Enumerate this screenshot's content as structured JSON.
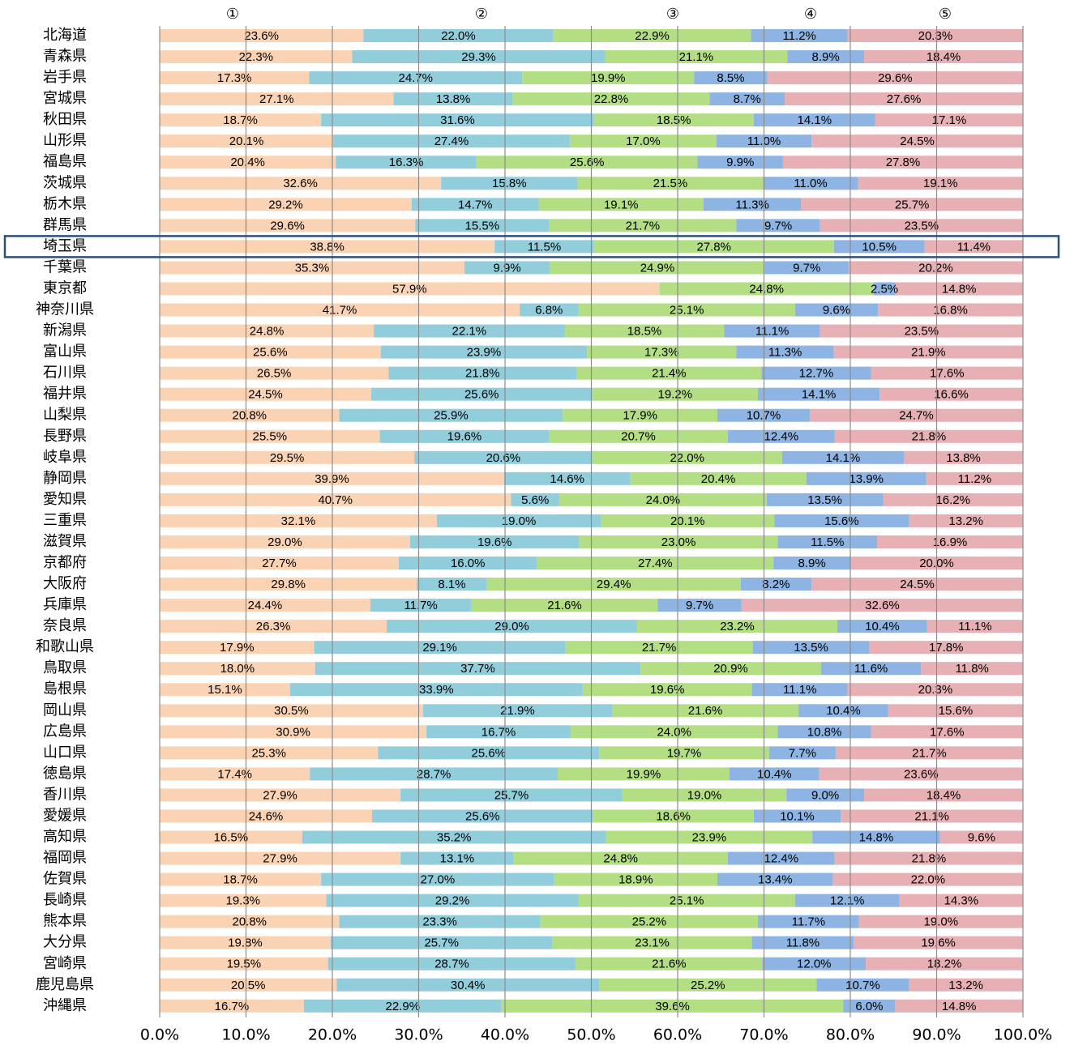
{
  "chart_data": {
    "type": "stacked_barh",
    "categories": [
      "北海道",
      "青森県",
      "岩手県",
      "宮城県",
      "秋田県",
      "山形県",
      "福島県",
      "茨城県",
      "栃木県",
      "群馬県",
      "埼玉県",
      "千葉県",
      "東京都",
      "神奈川県",
      "新潟県",
      "富山県",
      "石川県",
      "福井県",
      "山梨県",
      "長野県",
      "岐阜県",
      "静岡県",
      "愛知県",
      "三重県",
      "滋賀県",
      "京都府",
      "大阪府",
      "兵庫県",
      "奈良県",
      "和歌山県",
      "鳥取県",
      "島根県",
      "岡山県",
      "広島県",
      "山口県",
      "徳島県",
      "香川県",
      "愛媛県",
      "高知県",
      "福岡県",
      "佐賀県",
      "長崎県",
      "熊本県",
      "大分県",
      "宮崎県",
      "鹿児島県",
      "沖縄県"
    ],
    "series": [
      {
        "name": "①",
        "color": "#fad3b4",
        "values": [
          23.6,
          22.3,
          17.3,
          27.1,
          18.7,
          20.1,
          20.4,
          32.6,
          29.2,
          29.6,
          38.8,
          35.3,
          57.9,
          41.7,
          24.8,
          25.6,
          26.5,
          24.5,
          20.8,
          25.5,
          29.5,
          39.9,
          40.7,
          32.1,
          29.0,
          27.7,
          29.8,
          24.4,
          26.3,
          17.9,
          18.0,
          15.1,
          30.5,
          30.9,
          25.3,
          17.4,
          27.9,
          24.6,
          16.5,
          27.9,
          18.7,
          19.3,
          20.8,
          19.8,
          19.5,
          20.5,
          16.7
        ],
        "value_labels": [
          "23.6%",
          "22.3%",
          "17.3%",
          "27.1%",
          "18.7%",
          "20.1%",
          "20.4%",
          "32.6%",
          "29.2%",
          "29.6%",
          "38.8%",
          "35.3%",
          "57.9%",
          "41.7%",
          "24.8%",
          "25.6%",
          "26.5%",
          "24.5%",
          "20.8%",
          "25.5%",
          "29.5%",
          "39.9%",
          "40.7%",
          "32.1%",
          "29.0%",
          "27.7%",
          "29.8%",
          "24.4%",
          "26.3%",
          "17.9%",
          "18.0%",
          "15.1%",
          "30.5%",
          "30.9%",
          "25.3%",
          "17.4%",
          "27.9%",
          "24.6%",
          "16.5%",
          "27.9%",
          "18.7%",
          "19.3%",
          "20.8%",
          "19.8%",
          "19.5%",
          "20.5%",
          "16.7%"
        ]
      },
      {
        "name": "②",
        "color": "#92cddc",
        "values": [
          22.0,
          29.3,
          24.7,
          13.8,
          31.6,
          27.4,
          16.3,
          15.8,
          14.7,
          15.5,
          11.5,
          9.9,
          null,
          6.8,
          22.1,
          23.9,
          21.8,
          25.6,
          25.9,
          19.6,
          20.6,
          14.6,
          5.6,
          19.0,
          19.6,
          16.0,
          8.1,
          11.7,
          29.0,
          29.1,
          37.7,
          33.9,
          21.9,
          16.7,
          25.6,
          28.7,
          25.7,
          25.6,
          35.2,
          13.1,
          27.0,
          29.2,
          23.3,
          25.7,
          28.7,
          30.4,
          22.9
        ],
        "value_labels": [
          "22.0%",
          "29.3%",
          "24.7%",
          "13.8%",
          "31.6%",
          "27.4%",
          "16.3%",
          "15.8%",
          "14.7%",
          "15.5%",
          "11.5%",
          "9.9%",
          null,
          "6.8%",
          "22.1%",
          "23.9%",
          "21.8%",
          "25.6%",
          "25.9%",
          "19.6%",
          "20.6%",
          "14.6%",
          "5.6%",
          "19.0%",
          "19.6%",
          "16.0%",
          "8.1%",
          "11.7%",
          "29.0%",
          "29.1%",
          "37.7%",
          "33.9%",
          "21.9%",
          "16.7%",
          "25.6%",
          "28.7%",
          "25.7%",
          "25.6%",
          "35.2%",
          "13.1%",
          "27.0%",
          "29.2%",
          "23.3%",
          "25.7%",
          "28.7%",
          "30.4%",
          "22.9%"
        ]
      },
      {
        "name": "③",
        "color": "#b3de84",
        "values": [
          22.9,
          21.1,
          19.9,
          22.8,
          18.5,
          17.0,
          25.6,
          21.5,
          19.1,
          21.7,
          27.8,
          24.9,
          24.8,
          25.1,
          18.5,
          17.3,
          21.4,
          19.2,
          17.9,
          20.7,
          22.0,
          20.4,
          24.0,
          20.1,
          23.0,
          27.4,
          29.4,
          21.6,
          23.2,
          21.7,
          20.9,
          19.6,
          21.6,
          24.0,
          19.7,
          19.9,
          19.0,
          18.6,
          23.9,
          24.8,
          18.9,
          25.1,
          25.2,
          23.1,
          21.6,
          25.2,
          39.6
        ],
        "value_labels": [
          "22.9%",
          "21.1%",
          "19.9%",
          "22.8%",
          "18.5%",
          "17.0%",
          "25.6%",
          "21.5%",
          "19.1%",
          "21.7%",
          "27.8%",
          "24.9%",
          "24.8%",
          "25.1%",
          "18.5%",
          "17.3%",
          "21.4%",
          "19.2%",
          "17.9%",
          "20.7%",
          "22.0%",
          "20.4%",
          "24.0%",
          "20.1%",
          "23.0%",
          "27.4%",
          "29.4%",
          "21.6%",
          "23.2%",
          "21.7%",
          "20.9%",
          "19.6%",
          "21.6%",
          "24.0%",
          "19.7%",
          "19.9%",
          "19.0%",
          "18.6%",
          "23.9%",
          "24.8%",
          "18.9%",
          "25.1%",
          "25.2%",
          "23.1%",
          "21.6%",
          "25.2%",
          "39.6%"
        ]
      },
      {
        "name": "④",
        "color": "#8db4e2",
        "values": [
          11.2,
          8.9,
          8.5,
          8.7,
          14.1,
          11.0,
          9.9,
          11.0,
          11.3,
          9.7,
          10.5,
          9.7,
          2.5,
          9.6,
          11.1,
          11.3,
          12.7,
          14.1,
          10.7,
          12.4,
          14.1,
          13.9,
          13.5,
          15.6,
          11.5,
          8.9,
          8.2,
          9.7,
          10.4,
          13.5,
          11.6,
          11.1,
          10.4,
          10.8,
          7.7,
          10.4,
          9.0,
          10.1,
          14.8,
          12.4,
          13.4,
          12.1,
          11.7,
          11.8,
          12.0,
          10.7,
          6.0
        ],
        "value_labels": [
          "11.2%",
          "8.9%",
          "8.5%",
          "8.7%",
          "14.1%",
          "11.0%",
          "9.9%",
          "11.0%",
          "11.3%",
          "9.7%",
          "10.5%",
          "9.7%",
          "2.5%",
          "9.6%",
          "11.1%",
          "11.3%",
          "12.7%",
          "14.1%",
          "10.7%",
          "12.4%",
          "14.1%",
          "13.9%",
          "13.5%",
          "15.6%",
          "11.5%",
          "8.9%",
          "8.2%",
          "9.7%",
          "10.4%",
          "13.5%",
          "11.6%",
          "11.1%",
          "10.4%",
          "10.8%",
          "7.7%",
          "10.4%",
          "9.0%",
          "10.1%",
          "14.8%",
          "12.4%",
          "13.4%",
          "12.1%",
          "11.7%",
          "11.8%",
          "12.0%",
          "10.7%",
          "6.0%"
        ]
      },
      {
        "name": "⑤",
        "color": "#e6b0b4",
        "values": [
          20.3,
          18.4,
          29.6,
          27.6,
          17.1,
          24.5,
          27.8,
          19.1,
          25.7,
          23.5,
          11.4,
          20.2,
          14.8,
          16.8,
          23.5,
          21.9,
          17.6,
          16.6,
          24.7,
          21.8,
          13.8,
          11.2,
          16.2,
          13.2,
          16.9,
          20.0,
          24.5,
          32.6,
          11.1,
          17.8,
          11.8,
          20.3,
          15.6,
          17.6,
          21.7,
          23.6,
          18.4,
          21.1,
          9.6,
          21.8,
          22.0,
          14.3,
          19.0,
          19.6,
          18.2,
          13.2,
          14.8
        ],
        "value_labels": [
          "20.3%",
          "18.4%",
          "29.6%",
          "27.6%",
          "17.1%",
          "24.5%",
          "27.8%",
          "19.1%",
          "25.7%",
          "23.5%",
          "11.4%",
          "20.2%",
          "14.8%",
          "16.8%",
          "23.5%",
          "21.9%",
          "17.6%",
          "16.6%",
          "24.7%",
          "21.8%",
          "13.8%",
          "11.2%",
          "16.2%",
          "13.2%",
          "16.9%",
          "20.0%",
          "24.5%",
          "32.6%",
          "11.1%",
          "17.8%",
          "11.8%",
          "20.3%",
          "15.6%",
          "17.6%",
          "21.7%",
          "23.6%",
          "18.4%",
          "21.1%",
          "9.6%",
          "21.8%",
          "22.0%",
          "14.3%",
          "19.0%",
          "19.6%",
          "18.2%",
          "13.2%",
          "14.8%"
        ]
      }
    ],
    "xlim": [
      0,
      100
    ],
    "xticks": [
      {
        "value": 0,
        "label": "0.0%"
      },
      {
        "value": 10,
        "label": "10.0%"
      },
      {
        "value": 20,
        "label": "20.0%"
      },
      {
        "value": 30,
        "label": "30.0%"
      },
      {
        "value": 40,
        "label": "40.0%"
      },
      {
        "value": 50,
        "label": "50.0%"
      },
      {
        "value": 60,
        "label": "60.0%"
      },
      {
        "value": 70,
        "label": "70.0%"
      },
      {
        "value": 80,
        "label": "80.0%"
      },
      {
        "value": 90,
        "label": "90.0%"
      },
      {
        "value": 100,
        "label": "100.0%"
      }
    ],
    "grid": true,
    "highlight": 10
  }
}
